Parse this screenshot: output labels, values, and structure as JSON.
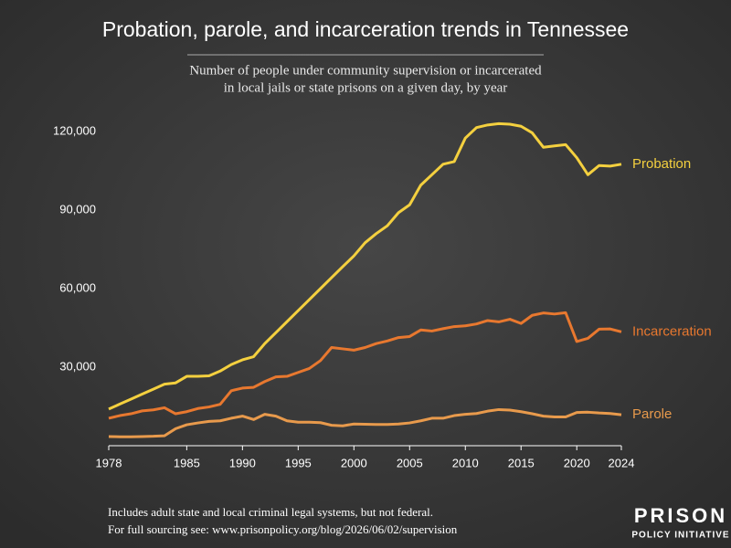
{
  "chart_data": {
    "type": "line",
    "title": "Probation, parole, and incarceration trends in Tennessee",
    "subtitle": [
      "Number of people under community supervision or incarcerated",
      "in local jails or state prisons on a given day, by year"
    ],
    "x": [
      1978,
      1979,
      1980,
      1981,
      1982,
      1983,
      1984,
      1985,
      1986,
      1987,
      1988,
      1989,
      1990,
      1991,
      1992,
      1993,
      1994,
      1995,
      1996,
      1997,
      1998,
      1999,
      2000,
      2001,
      2002,
      2003,
      2004,
      2005,
      2006,
      2007,
      2008,
      2009,
      2010,
      2011,
      2012,
      2013,
      2014,
      2015,
      2016,
      2017,
      2018,
      2019,
      2020,
      2021,
      2022,
      2023,
      2024
    ],
    "series": [
      {
        "name": "Probation",
        "color": "#f4d03f",
        "values": [
          14000,
          15900,
          17800,
          19700,
          21600,
          23500,
          24000,
          26500,
          26500,
          26700,
          28500,
          31000,
          32800,
          34000,
          39000,
          43200,
          47400,
          51600,
          55800,
          60000,
          64200,
          68400,
          72500,
          77500,
          81000,
          84000,
          89000,
          92000,
          99500,
          103500,
          107500,
          108500,
          117500,
          121500,
          122500,
          123000,
          122800,
          122000,
          119500,
          114000,
          114500,
          115000,
          110000,
          103500,
          107000,
          106800,
          107500
        ]
      },
      {
        "name": "Incarceration",
        "color": "#e8782f",
        "values": [
          10500,
          11500,
          12200,
          13300,
          13700,
          14500,
          12200,
          13000,
          14200,
          14800,
          15800,
          21000,
          22000,
          22300,
          24500,
          26300,
          26500,
          28000,
          29500,
          32500,
          37500,
          37000,
          36500,
          37500,
          39000,
          40000,
          41300,
          41700,
          44200,
          43800,
          44700,
          45500,
          45800,
          46500,
          47800,
          47300,
          48300,
          46700,
          49800,
          50700,
          50300,
          50800,
          39800,
          41000,
          44500,
          44600,
          43500
        ]
      },
      {
        "name": "Parole",
        "color": "#e89a4c",
        "values": [
          3500,
          3400,
          3400,
          3500,
          3600,
          3800,
          6500,
          8000,
          8700,
          9300,
          9500,
          10500,
          11300,
          10000,
          12000,
          11300,
          9500,
          9000,
          9000,
          8800,
          7800,
          7600,
          8300,
          8200,
          8100,
          8100,
          8300,
          8700,
          9500,
          10500,
          10500,
          11500,
          12000,
          12300,
          13200,
          13800,
          13600,
          13000,
          12200,
          11300,
          11000,
          11000,
          12700,
          12800,
          12500,
          12300,
          11800
        ]
      }
    ],
    "xlim": [
      1978,
      2024
    ],
    "xticks": [
      1978,
      1985,
      1990,
      1995,
      2000,
      2005,
      2010,
      2015,
      2020,
      2024
    ],
    "ylim": [
      0,
      130000
    ],
    "yticks": [
      {
        "value": 30000,
        "label": "30,000"
      },
      {
        "value": 60000,
        "label": "60,000"
      },
      {
        "value": 90000,
        "label": "90,000"
      },
      {
        "value": 120000,
        "label": "120,000"
      }
    ],
    "grid": false,
    "notes": [
      "Includes adult state and local criminal legal systems, but not federal.",
      "For full sourcing see: www.prisonpolicy.org/blog/2026/06/02/supervision"
    ],
    "logo": [
      "PRISON",
      "POLICY INITIATIVE"
    ]
  }
}
